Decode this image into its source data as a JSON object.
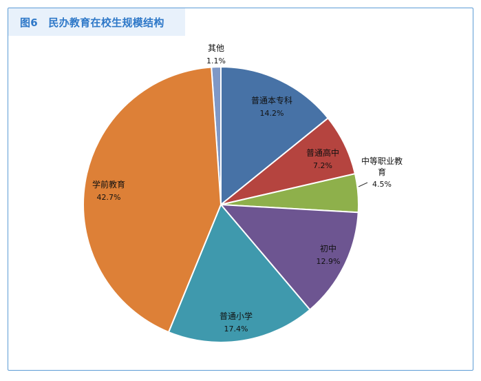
{
  "chart_data": {
    "type": "pie",
    "title": "图6　民办教育在校生规模结构",
    "series": [
      {
        "name": "",
        "labels": [
          "其他",
          "普通本专科",
          "普通高中",
          "中等职业教育",
          "初中",
          "普通小学",
          "学前教育"
        ],
        "values": [
          1.1,
          14.2,
          7.2,
          4.5,
          12.9,
          17.4,
          42.7
        ],
        "value_labels": [
          "1.1%",
          "14.2%",
          "7.2%",
          "4.5%",
          "12.9%",
          "17.4%",
          "42.7%"
        ],
        "colors": [
          "#7f98c6",
          "#4772a6",
          "#b5443f",
          "#8eb04b",
          "#6d5591",
          "#3f99ad",
          "#dd8037"
        ]
      }
    ],
    "legend": "none",
    "grid": false
  },
  "colors": {
    "frame_border": "#5b9bd5",
    "title_bg": "#e8f1fb",
    "title_text": "#2e78c8"
  }
}
